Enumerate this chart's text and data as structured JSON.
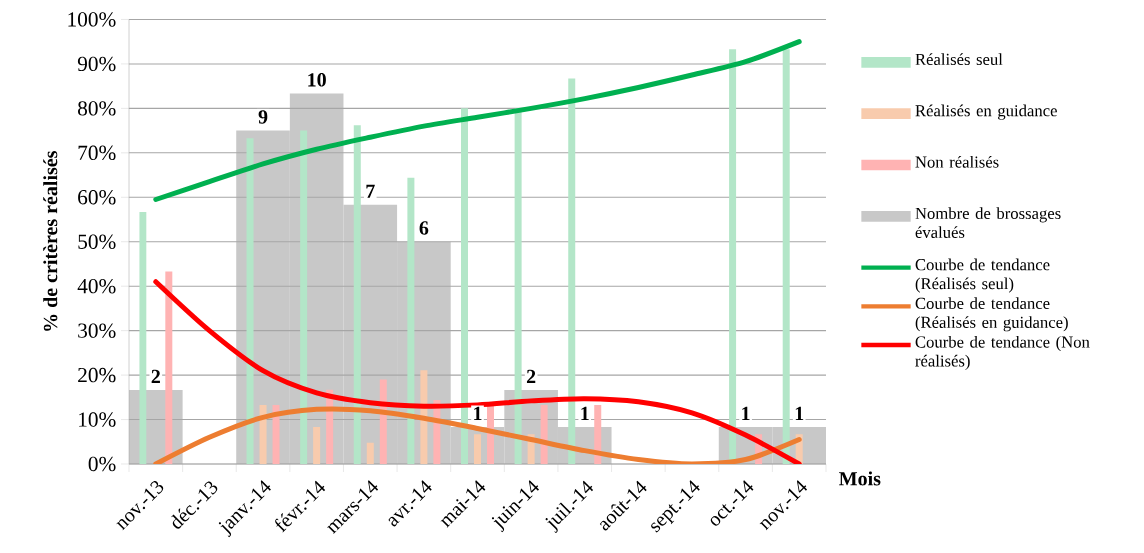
{
  "chart_data": {
    "type": "bar",
    "categories": [
      "nov.-13",
      "déc.-13",
      "janv.-14",
      "févr.-14",
      "mars-14",
      "avr.-14",
      "mai-14",
      "juin-14",
      "juil.-14",
      "août-14",
      "sept.-14",
      "oct.-14",
      "nov.-14"
    ],
    "series": [
      {
        "name": "Réalisés seul",
        "color": "#b3e6c8",
        "values": [
          56.7,
          null,
          73.3,
          75,
          76.2,
          64.4,
          80,
          80,
          86.7,
          null,
          null,
          93.3,
          93.3
        ]
      },
      {
        "name": "Réalisés en guidance",
        "color": "#f8cbad",
        "values": [
          0,
          null,
          13.3,
          8.3,
          4.8,
          21.1,
          6.7,
          6.7,
          0,
          null,
          null,
          0,
          6.7
        ]
      },
      {
        "name": "Non réalisés",
        "color": "#ffb3b3",
        "values": [
          43.3,
          null,
          13.3,
          16.7,
          19,
          14.4,
          13.3,
          13.3,
          13.3,
          null,
          null,
          6.7,
          0
        ]
      },
      {
        "name": "Nombre de brossages évalués",
        "color": "#c8c8c8",
        "axis": "y2",
        "values": [
          2,
          null,
          9,
          10,
          7,
          6,
          1,
          2,
          1,
          null,
          null,
          1,
          1
        ],
        "value_labels": [
          "2",
          null,
          "9",
          "10",
          "7",
          "6",
          "1",
          "2",
          "1",
          null,
          null,
          "1",
          "1"
        ]
      },
      {
        "name": "Courbe de tendance (Réalisés seul)",
        "type": "line",
        "color": "#00b050",
        "values": [
          59.5,
          63.5,
          67.5,
          70.8,
          73.5,
          76,
          78,
          80,
          82.2,
          84.7,
          87.5,
          90.5,
          95
        ]
      },
      {
        "name": "Courbe de tendance (Réalisés en guidance)",
        "type": "line",
        "color": "#ed7d31",
        "values": [
          0,
          6,
          10.5,
          12.3,
          12,
          10.3,
          8,
          5.5,
          3,
          1,
          0,
          1,
          5.5
        ]
      },
      {
        "name": "Courbe de tendance (Non réalisés)",
        "type": "line",
        "color": "#ff0000",
        "values": [
          41,
          30,
          21,
          16,
          13.8,
          13,
          13.3,
          14.2,
          14.7,
          14,
          11.5,
          6.5,
          0
        ]
      }
    ],
    "xlabel": "Mois",
    "ylabel": "% de critères réalisés",
    "ylim": [
      0,
      100
    ],
    "yticks": [
      {
        "value": 0,
        "label": "0%"
      },
      {
        "value": 10,
        "label": "10%"
      },
      {
        "value": 20,
        "label": "20%"
      },
      {
        "value": 30,
        "label": "30%"
      },
      {
        "value": 40,
        "label": "40%"
      },
      {
        "value": 50,
        "label": "50%"
      },
      {
        "value": 60,
        "label": "60%"
      },
      {
        "value": 70,
        "label": "70%"
      },
      {
        "value": 80,
        "label": "80%"
      },
      {
        "value": 90,
        "label": "90%"
      },
      {
        "value": 100,
        "label": "100%"
      }
    ],
    "y2lim": [
      0,
      12
    ],
    "grid": "y",
    "legend": "right"
  }
}
